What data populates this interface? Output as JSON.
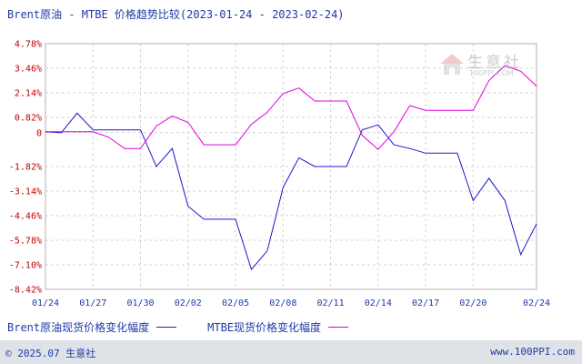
{
  "chart_data": {
    "type": "line",
    "title": "Brent原油 - MTBE 价格趋势比较(2023-01-24 - 2023-02-24)",
    "x": [
      "01/24",
      "01/25",
      "01/26",
      "01/27",
      "01/28",
      "01/29",
      "01/30",
      "01/31",
      "02/01",
      "02/02",
      "02/03",
      "02/04",
      "02/05",
      "02/06",
      "02/07",
      "02/08",
      "02/09",
      "02/10",
      "02/11",
      "02/12",
      "02/13",
      "02/14",
      "02/15",
      "02/16",
      "02/17",
      "02/18",
      "02/19",
      "02/20",
      "02/21",
      "02/22",
      "02/23",
      "02/24"
    ],
    "x_tick_labels": [
      "01/24",
      "01/27",
      "01/30",
      "02/02",
      "02/05",
      "02/08",
      "02/11",
      "02/14",
      "02/17",
      "02/20",
      "02/24"
    ],
    "x_tick_positions": [
      "01/24",
      "01/27",
      "01/30",
      "02/02",
      "02/05",
      "02/08",
      "02/11",
      "02/14",
      "02/17",
      "02/20",
      "02/24"
    ],
    "y_tick_labels": [
      "4.78%",
      "3.46%",
      "2.14%",
      "0.82%",
      "0",
      "-1.82%",
      "-3.14%",
      "-4.46%",
      "-5.78%",
      "-7.10%",
      "-8.42%"
    ],
    "y_tick_values": [
      4.78,
      3.46,
      2.14,
      0.82,
      0,
      -1.82,
      -3.14,
      -4.46,
      -5.78,
      -7.1,
      -8.42
    ],
    "ylim": [
      -8.42,
      4.78
    ],
    "grid": true,
    "legend_position": "bottom-left",
    "series": [
      {
        "name": "Brent原油现货价格变化幅度",
        "color": "#1a1acc",
        "values": [
          0.05,
          0.0,
          1.05,
          0.15,
          0.15,
          0.15,
          0.15,
          -1.82,
          -0.85,
          -3.95,
          -4.65,
          -4.65,
          -4.65,
          -7.35,
          -6.35,
          -2.95,
          -1.35,
          -1.82,
          -1.82,
          -1.82,
          0.15,
          0.42,
          -0.65,
          -0.85,
          -1.1,
          -1.1,
          -1.1,
          -3.65,
          -2.45,
          -3.65,
          -6.55,
          -4.9
        ]
      },
      {
        "name": "MTBE现货价格变化幅度",
        "color": "#dd00dd",
        "values": [
          0.05,
          0.05,
          0.05,
          0.05,
          -0.25,
          -0.85,
          -0.85,
          0.35,
          0.9,
          0.55,
          -0.65,
          -0.65,
          -0.65,
          0.45,
          1.1,
          2.1,
          2.4,
          1.7,
          1.7,
          1.7,
          -0.15,
          -0.9,
          0.05,
          1.45,
          1.2,
          1.2,
          1.2,
          1.2,
          2.8,
          3.6,
          3.3,
          2.5
        ]
      }
    ]
  },
  "footer": {
    "copyright": "© 2025.07 生意社",
    "url": "www.100PPI.com"
  },
  "watermark": {
    "cn": "生意社",
    "en": "100PPI.COM"
  }
}
